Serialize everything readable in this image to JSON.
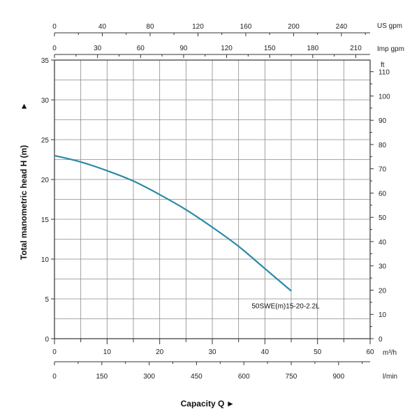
{
  "chart_data": {
    "type": "line",
    "grid": true,
    "xlabel": "Capacity Q",
    "ylabel": "Total manometric head H (m)",
    "xlabel_arrow": "►",
    "ylabel_arrow": "►",
    "curve_color": "#2a8aa6",
    "x_main": {
      "unit": "m³/h",
      "range": [
        0,
        60
      ],
      "ticks": [
        "0",
        "10",
        "20",
        "30",
        "40",
        "50",
        "60"
      ]
    },
    "x_lmin": {
      "unit": "l/min",
      "range": [
        0,
        1000
      ],
      "ticks": [
        "0",
        "150",
        "300",
        "450",
        "600",
        "750",
        "900"
      ],
      "tick_values": [
        0,
        150,
        300,
        450,
        600,
        750,
        900
      ]
    },
    "x_usgpm": {
      "unit": "US gpm",
      "range": [
        0,
        264
      ],
      "ticks": [
        "0",
        "40",
        "80",
        "120",
        "160",
        "200",
        "240"
      ],
      "tick_values": [
        0,
        40,
        80,
        120,
        160,
        200,
        240
      ]
    },
    "x_impgpm": {
      "unit": "Imp gpm",
      "range": [
        0,
        220
      ],
      "ticks": [
        "0",
        "30",
        "60",
        "90",
        "120",
        "150",
        "180",
        "210"
      ],
      "tick_values": [
        0,
        30,
        60,
        90,
        120,
        150,
        180,
        210
      ]
    },
    "y_main": {
      "range": [
        0,
        35
      ],
      "ticks": [
        "0",
        "5",
        "10",
        "15",
        "20",
        "25",
        "30",
        "35"
      ]
    },
    "y_ft": {
      "unit": "ft",
      "range": [
        0,
        114.8
      ],
      "ticks": [
        "0",
        "10",
        "20",
        "30",
        "40",
        "50",
        "60",
        "70",
        "80",
        "90",
        "100",
        "110"
      ],
      "tick_values": [
        0,
        10,
        20,
        30,
        40,
        50,
        60,
        70,
        80,
        90,
        100,
        110
      ]
    },
    "series": [
      {
        "name": "50SWE(m)15-20-2.2L",
        "x": [
          0,
          5,
          10,
          15,
          20,
          25,
          30,
          35,
          40,
          45
        ],
        "y": [
          23,
          22.2,
          21.1,
          19.8,
          18.1,
          16.2,
          14,
          11.6,
          8.8,
          6
        ]
      }
    ]
  }
}
